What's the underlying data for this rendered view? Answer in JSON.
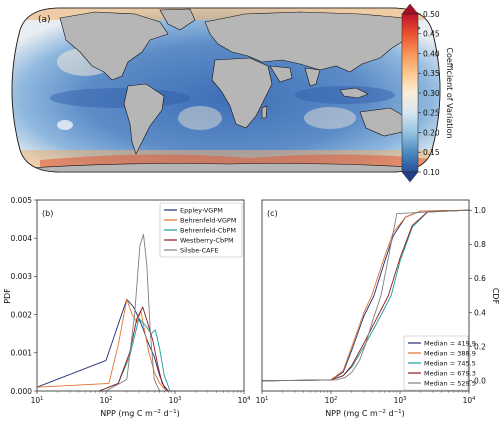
{
  "map_panel": {
    "label": "(a)",
    "colorbar": {
      "label": "Coefficient of Variation",
      "ticks": [
        "0.50",
        "0.45",
        "0.40",
        "0.35",
        "0.30",
        "0.25",
        "0.20",
        "0.15",
        "0.10"
      ],
      "colors": [
        "#c0142a",
        "#e8502f",
        "#f7945a",
        "#fcc88f",
        "#fbeedb",
        "#d6e6f2",
        "#96c3df",
        "#4b8bc2",
        "#2a4f9a"
      ]
    }
  },
  "chart_data": [
    {
      "type": "line",
      "panel_label": "(b)",
      "xlabel_main": "NPP (mg C m",
      "xlabel_sup1": "−2",
      "xlabel_mid": " d",
      "xlabel_sup2": "−1",
      "xlabel_end": ")",
      "ylabel": "PDF",
      "x_scale": "log",
      "xlim": [
        10,
        10000
      ],
      "ylim": [
        0,
        0.005
      ],
      "x_ticks": [
        10,
        100,
        1000,
        10000
      ],
      "x_tick_labels": [
        {
          "base": "10",
          "exp": "1"
        },
        {
          "base": "10",
          "exp": "2"
        },
        {
          "base": "10",
          "exp": "3"
        },
        {
          "base": "10",
          "exp": "4"
        }
      ],
      "y_ticks": [
        "0.000",
        "0.001",
        "0.002",
        "0.003",
        "0.004",
        "0.005"
      ],
      "y_tick_values": [
        0,
        0.001,
        0.002,
        0.003,
        0.004,
        0.005
      ],
      "legend_position": "top-right",
      "series": [
        {
          "name": "Eppley-VGPM",
          "color": "#1f2d7a",
          "x": [
            10,
            100,
            200,
            250,
            300,
            350,
            400,
            500,
            600,
            700,
            800
          ],
          "y": [
            0.0001,
            0.0008,
            0.0024,
            0.0022,
            0.0019,
            0.0016,
            0.0013,
            0.0009,
            0.0004,
            0.0001,
            0
          ]
        },
        {
          "name": "Behrenfeld-VGPM",
          "color": "#e0722e",
          "x": [
            10,
            110,
            150,
            200,
            240,
            280,
            320,
            360,
            420,
            500,
            600,
            750
          ],
          "y": [
            0.0001,
            0.0002,
            0.0012,
            0.0024,
            0.002,
            0.0018,
            0.0021,
            0.0016,
            0.001,
            0.0005,
            0.0002,
            0
          ]
        },
        {
          "name": "Behrenfeld-CbPM",
          "color": "#1a9aa0",
          "x": [
            80,
            150,
            220,
            300,
            380,
            450,
            520,
            600,
            700,
            850
          ],
          "y": [
            0,
            0.0002,
            0.0009,
            0.0019,
            0.0017,
            0.0015,
            0.0016,
            0.0011,
            0.0004,
            0
          ]
        },
        {
          "name": "Westberry-CbPM",
          "color": "#8b1a1a",
          "x": [
            80,
            150,
            220,
            280,
            340,
            400,
            480,
            560,
            650,
            800
          ],
          "y": [
            0,
            0.0002,
            0.001,
            0.0019,
            0.0022,
            0.0018,
            0.0013,
            0.0007,
            0.0002,
            0
          ]
        },
        {
          "name": "Silsbe-CAFE",
          "color": "#808080",
          "x": [
            100,
            200,
            260,
            310,
            350,
            390,
            440,
            500,
            600
          ],
          "y": [
            0,
            0.0003,
            0.002,
            0.0038,
            0.0041,
            0.0033,
            0.0015,
            0.0003,
            0
          ]
        }
      ]
    },
    {
      "type": "line",
      "panel_label": "(c)",
      "xlabel_main": "NPP (mg C m",
      "xlabel_sup1": "−2",
      "xlabel_mid": " d",
      "xlabel_sup2": "−1",
      "xlabel_end": ")",
      "ylabel": "CDF",
      "x_scale": "log",
      "xlim": [
        10,
        10000
      ],
      "ylim": [
        -0.06,
        1.06
      ],
      "x_ticks": [
        10,
        100,
        1000,
        10000
      ],
      "x_tick_labels": [
        {
          "base": "10",
          "exp": "1"
        },
        {
          "base": "10",
          "exp": "2"
        },
        {
          "base": "10",
          "exp": "3"
        },
        {
          "base": "10",
          "exp": "4"
        }
      ],
      "y_ticks": [
        "0.0",
        "0.2",
        "0.4",
        "0.6",
        "0.8",
        "1.0"
      ],
      "y_tick_values": [
        0,
        0.2,
        0.4,
        0.6,
        0.8,
        1.0
      ],
      "legend_position": "bottom-right",
      "series": [
        {
          "name": "Median = 419.9",
          "color": "#1f2d7a",
          "x": [
            10,
            100,
            150,
            200,
            300,
            420,
            600,
            800,
            1200,
            2000,
            10000
          ],
          "y": [
            0,
            0.005,
            0.05,
            0.18,
            0.38,
            0.5,
            0.7,
            0.85,
            0.96,
            0.995,
            1
          ]
        },
        {
          "name": "Median = 388.9",
          "color": "#e0722e",
          "x": [
            10,
            100,
            150,
            200,
            300,
            389,
            600,
            800,
            1200,
            2000,
            10000
          ],
          "y": [
            0,
            0.005,
            0.06,
            0.2,
            0.4,
            0.5,
            0.73,
            0.87,
            0.96,
            0.995,
            1
          ]
        },
        {
          "name": "Median = 745.5",
          "color": "#1a9aa0",
          "x": [
            10,
            100,
            150,
            200,
            300,
            450,
            745,
            1000,
            1500,
            2500,
            10000
          ],
          "y": [
            0,
            0.005,
            0.03,
            0.08,
            0.2,
            0.33,
            0.5,
            0.7,
            0.9,
            0.99,
            1
          ]
        },
        {
          "name": "Median = 679.3",
          "color": "#8b1a1a",
          "x": [
            10,
            100,
            150,
            200,
            300,
            450,
            679,
            1000,
            1500,
            2500,
            10000
          ],
          "y": [
            0,
            0.005,
            0.03,
            0.09,
            0.22,
            0.36,
            0.5,
            0.72,
            0.91,
            0.99,
            1
          ]
        },
        {
          "name": "Median = 529.5",
          "color": "#808080",
          "x": [
            10,
            120,
            160,
            200,
            260,
            320,
            400,
            530,
            700,
            900,
            10000
          ],
          "y": [
            0,
            0.005,
            0.02,
            0.05,
            0.12,
            0.22,
            0.35,
            0.5,
            0.75,
            0.98,
            1
          ]
        }
      ]
    }
  ]
}
